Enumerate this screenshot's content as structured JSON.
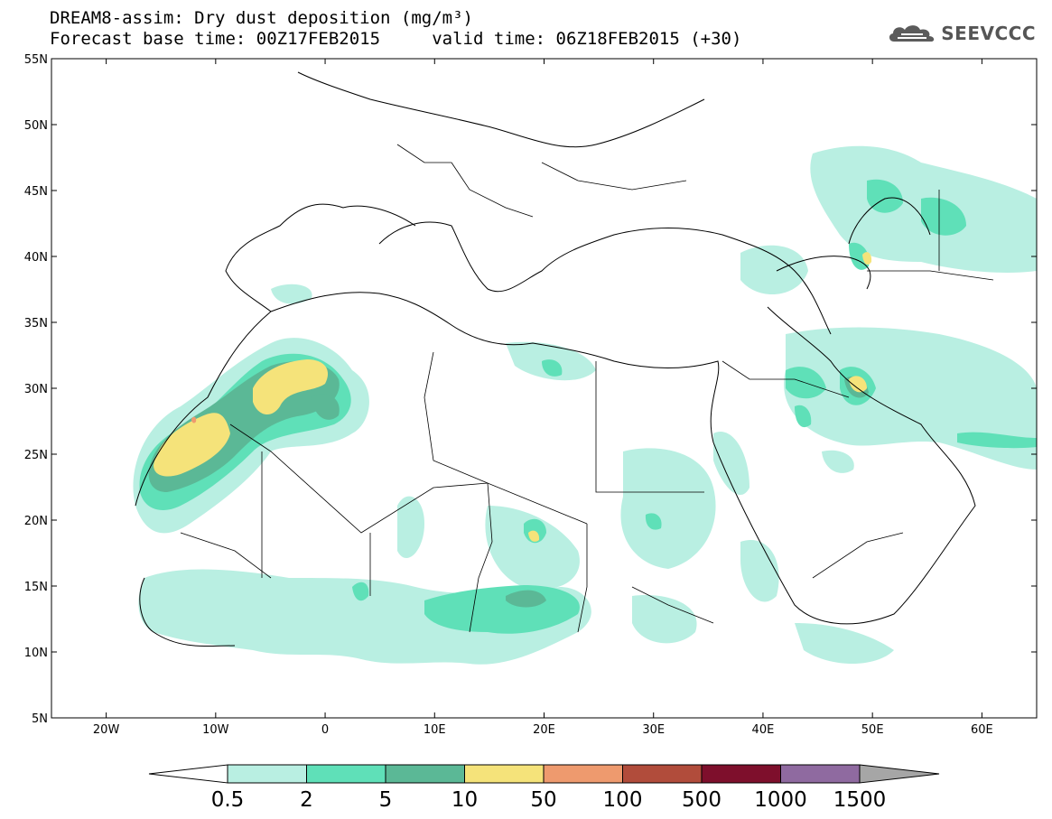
{
  "header": {
    "title_line1": "DREAM8-assim: Dry dust deposition (mg/m³)",
    "title_line2": "Forecast base time: 00Z17FEB2015     valid time: 06Z18FEB2015 (+30)",
    "logo_text": "SEEVCCC"
  },
  "map": {
    "lon_labels": [
      "20W",
      "10W",
      "0",
      "10E",
      "20E",
      "30E",
      "40E",
      "50E",
      "60E"
    ],
    "lon_values": [
      -20,
      -10,
      0,
      10,
      20,
      30,
      40,
      50,
      60
    ],
    "lat_labels": [
      "55N",
      "50N",
      "45N",
      "40N",
      "35N",
      "30N",
      "25N",
      "20N",
      "15N",
      "10N",
      "5N"
    ],
    "lat_values": [
      55,
      50,
      45,
      40,
      35,
      30,
      25,
      20,
      15,
      10,
      5
    ],
    "lon_range": [
      -25,
      65
    ],
    "lat_range": [
      5,
      55
    ]
  },
  "colorbar": {
    "labels": [
      "0.5",
      "2",
      "5",
      "10",
      "50",
      "100",
      "500",
      "1000",
      "1500"
    ],
    "colors": [
      "#b9efe2",
      "#5fe0b8",
      "#5bb896",
      "#f5e37a",
      "#ee9a6e",
      "#b14c3b",
      "#7e0f2c",
      "#8f6aa0"
    ],
    "under_color": "#ffffff",
    "over_color": "#a6a6a6"
  },
  "colors": {
    "c1": "#b9efe2",
    "c2": "#5fe0b8",
    "c3": "#5bb896",
    "c4": "#f5e37a",
    "c5": "#ee9a6e"
  }
}
